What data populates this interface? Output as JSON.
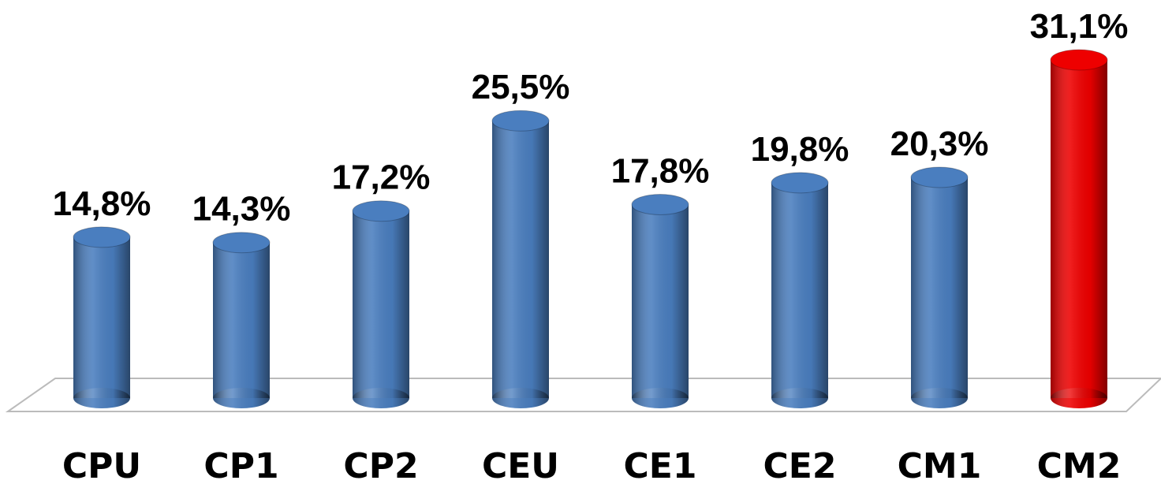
{
  "chart_data": {
    "type": "bar",
    "categories": [
      "CPU",
      "CP1",
      "CP2",
      "CEU",
      "CE1",
      "CE2",
      "CM1",
      "CM2"
    ],
    "values": [
      14.8,
      14.3,
      17.2,
      25.5,
      17.8,
      19.8,
      20.3,
      31.1
    ],
    "value_labels": [
      "14,8%",
      "14,3%",
      "17,2%",
      "25,5%",
      "17,8%",
      "19,8%",
      "20,3%",
      "31,1%"
    ],
    "colors": [
      "#4a7ebf",
      "#4a7ebf",
      "#4a7ebf",
      "#4a7ebf",
      "#4a7ebf",
      "#4a7ebf",
      "#4a7ebf",
      "#ee0000"
    ]
  }
}
